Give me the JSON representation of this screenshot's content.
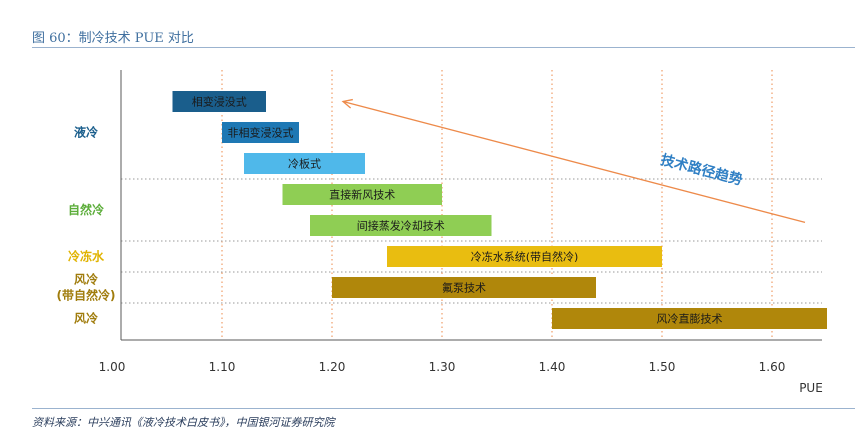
{
  "figure": {
    "title": "图 60：制冷技术 PUE 对比",
    "source": "资料来源：中兴通讯《液冷技术白皮书》，中国银河证券研究院"
  },
  "chart_data": {
    "type": "bar",
    "orientation": "horizontal-range",
    "xlabel": "PUE",
    "xlim": [
      1.0,
      1.65
    ],
    "xticks": [
      "1.00",
      "1.10",
      "1.20",
      "1.30",
      "1.40",
      "1.50",
      "1.60"
    ],
    "groups": [
      {
        "label": "液冷",
        "color": "#1a5e8c",
        "rows": 3
      },
      {
        "label": "自然冷",
        "color": "#5cad3a",
        "rows": 2
      },
      {
        "label": "冷冻水",
        "color": "#e0b300",
        "rows": 1
      },
      {
        "label": "风冷\n(带自然冷)",
        "color": "#a07c0c",
        "rows": 1
      },
      {
        "label": "风冷",
        "color": "#a07c0c",
        "rows": 1
      }
    ],
    "bars": [
      {
        "label": "相变浸没式",
        "start": 1.055,
        "end": 1.14,
        "color": "#1a5e8c"
      },
      {
        "label": "非相变浸没式",
        "start": 1.1,
        "end": 1.17,
        "color": "#1e78b4"
      },
      {
        "label": "冷板式",
        "start": 1.12,
        "end": 1.23,
        "color": "#4fb8ea"
      },
      {
        "label": "直接新风技术",
        "start": 1.155,
        "end": 1.3,
        "color": "#8fce54"
      },
      {
        "label": "间接蒸发冷却技术",
        "start": 1.18,
        "end": 1.345,
        "color": "#8fce54"
      },
      {
        "label": "冷冻水系统(带自然冷)",
        "start": 1.25,
        "end": 1.5,
        "color": "#e9bd10"
      },
      {
        "label": "氟泵技术",
        "start": 1.2,
        "end": 1.44,
        "color": "#b0870b"
      },
      {
        "label": "风冷直膨技术",
        "start": 1.4,
        "end": 1.65,
        "color": "#b0870b"
      }
    ],
    "annotation": {
      "text": "技术路径趋势",
      "color": "#2f7fc4",
      "arrow_color": "#ed8a4a",
      "arrow_from": [
        1.63,
        4.4
      ],
      "arrow_to": [
        1.21,
        0.5
      ]
    },
    "vertical_reference_lines": [
      "1.10",
      "1.20",
      "1.30",
      "1.40",
      "1.50",
      "1.60"
    ],
    "reference_line_color": "#ed8a4a"
  }
}
